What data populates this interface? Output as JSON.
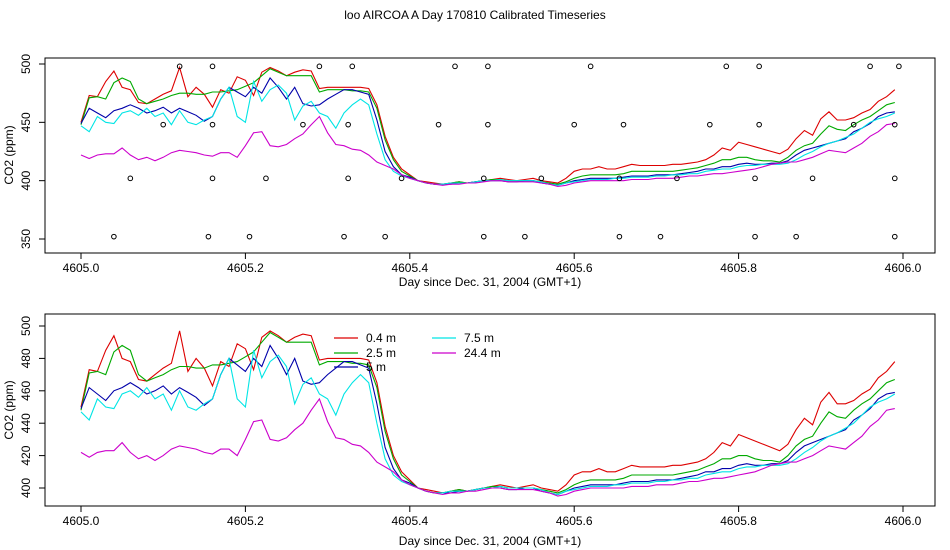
{
  "figure": {
    "title": "loo AIRCOA A  Day 170810  Calibrated Timeseries"
  },
  "colors": {
    "0.4 m": "#dd0000",
    "2.5 m": "#00aa00",
    "5 m": "#0000aa",
    "7.5 m": "#00e5e5",
    "24.4 m": "#cc00cc",
    "points": "#000000"
  },
  "chart_data": [
    {
      "type": "line",
      "xlabel": "Day since Dec. 31, 2004 (GMT+1)",
      "ylabel": "CO2 (ppm)",
      "xlim": [
        4605.0,
        4606.0
      ],
      "ylim": [
        350,
        500
      ],
      "xticks": [
        4605.0,
        4605.2,
        4605.4,
        4605.6,
        4605.8,
        4606.0
      ],
      "xtick_labels": [
        "4605.0",
        "4605.2",
        "4605.4",
        "4605.6",
        "4605.8",
        "4606.0"
      ],
      "yticks": [
        350,
        400,
        450,
        500
      ],
      "ytick_labels": [
        "350",
        "400",
        "450",
        "500"
      ],
      "x": [
        4605.0,
        4605.01,
        4605.02,
        4605.03,
        4605.04,
        4605.05,
        4605.06,
        4605.07,
        4605.08,
        4605.09,
        4605.1,
        4605.11,
        4605.12,
        4605.13,
        4605.14,
        4605.15,
        4605.16,
        4605.17,
        4605.18,
        4605.19,
        4605.2,
        4605.21,
        4605.22,
        4605.23,
        4605.24,
        4605.25,
        4605.26,
        4605.27,
        4605.28,
        4605.29,
        4605.3,
        4605.31,
        4605.32,
        4605.33,
        4605.34,
        4605.35,
        4605.36,
        4605.37,
        4605.38,
        4605.39,
        4605.4,
        4605.41,
        4605.42,
        4605.43,
        4605.44,
        4605.45,
        4605.46,
        4605.47,
        4605.48,
        4605.49,
        4605.5,
        4605.51,
        4605.52,
        4605.53,
        4605.54,
        4605.55,
        4605.56,
        4605.57,
        4605.58,
        4605.59,
        4605.6,
        4605.61,
        4605.62,
        4605.63,
        4605.64,
        4605.65,
        4605.66,
        4605.67,
        4605.68,
        4605.69,
        4605.7,
        4605.71,
        4605.72,
        4605.73,
        4605.74,
        4605.75,
        4605.76,
        4605.77,
        4605.78,
        4605.79,
        4605.8,
        4605.81,
        4605.82,
        4605.83,
        4605.84,
        4605.85,
        4605.86,
        4605.87,
        4605.88,
        4605.89,
        4605.9,
        4605.91,
        4605.92,
        4605.93,
        4605.94,
        4605.95,
        4605.96,
        4605.97,
        4605.98,
        4605.99
      ],
      "series": [
        {
          "name": "0.4 m",
          "values": [
            450,
            473,
            472,
            485,
            494,
            480,
            478,
            467,
            466,
            470,
            474,
            477,
            497,
            472,
            480,
            474,
            463,
            478,
            475,
            489,
            486,
            473,
            493,
            497,
            494,
            490,
            493,
            495,
            494,
            479,
            480,
            480,
            480,
            480,
            480,
            479,
            465,
            438,
            420,
            410,
            405,
            400,
            399,
            398,
            397,
            398,
            399,
            398,
            399,
            400,
            401,
            402,
            401,
            400,
            401,
            402,
            400,
            399,
            398,
            402,
            408,
            410,
            410,
            412,
            410,
            410,
            412,
            414,
            413,
            413,
            413,
            413,
            414,
            414,
            415,
            416,
            418,
            422,
            428,
            426,
            433,
            431,
            429,
            427,
            425,
            423,
            427,
            436,
            443,
            439,
            453,
            459,
            452,
            452,
            454,
            458,
            461,
            468,
            472,
            478
          ]
        },
        {
          "name": "2.5 m",
          "values": [
            448,
            471,
            472,
            470,
            484,
            488,
            485,
            470,
            466,
            468,
            470,
            473,
            475,
            475,
            474,
            474,
            476,
            476,
            477,
            478,
            481,
            484,
            490,
            496,
            493,
            490,
            490,
            490,
            490,
            476,
            478,
            478,
            478,
            477,
            477,
            476,
            462,
            435,
            418,
            408,
            404,
            400,
            398,
            397,
            397,
            398,
            399,
            398,
            399,
            400,
            401,
            401,
            400,
            400,
            400,
            400,
            399,
            398,
            397,
            399,
            402,
            404,
            405,
            405,
            405,
            405,
            406,
            408,
            408,
            408,
            408,
            408,
            408,
            409,
            410,
            411,
            413,
            415,
            418,
            418,
            420,
            420,
            418,
            417,
            417,
            416,
            420,
            426,
            430,
            432,
            440,
            447,
            444,
            443,
            448,
            452,
            455,
            460,
            465,
            467
          ]
        },
        {
          "name": "5 m",
          "values": [
            449,
            462,
            458,
            454,
            460,
            462,
            465,
            462,
            458,
            460,
            463,
            458,
            462,
            459,
            456,
            451,
            455,
            470,
            480,
            476,
            472,
            480,
            475,
            488,
            480,
            470,
            480,
            466,
            464,
            465,
            470,
            474,
            478,
            478,
            476,
            474,
            452,
            425,
            412,
            405,
            403,
            400,
            398,
            397,
            397,
            397,
            398,
            398,
            399,
            400,
            400,
            400,
            399,
            399,
            400,
            400,
            398,
            397,
            396,
            398,
            400,
            401,
            402,
            402,
            402,
            402,
            403,
            404,
            404,
            404,
            405,
            405,
            405,
            406,
            407,
            408,
            410,
            410,
            412,
            412,
            414,
            415,
            414,
            414,
            415,
            415,
            417,
            422,
            426,
            428,
            430,
            432,
            434,
            436,
            442,
            445,
            449,
            455,
            458,
            459
          ]
        },
        {
          "name": "7.5 m",
          "values": [
            447,
            442,
            455,
            450,
            449,
            458,
            460,
            456,
            462,
            455,
            458,
            448,
            460,
            450,
            448,
            452,
            455,
            470,
            480,
            455,
            450,
            485,
            468,
            478,
            482,
            475,
            452,
            464,
            468,
            458,
            455,
            445,
            458,
            465,
            470,
            465,
            440,
            418,
            408,
            404,
            402,
            400,
            398,
            397,
            397,
            398,
            398,
            398,
            399,
            400,
            400,
            401,
            400,
            400,
            400,
            400,
            399,
            397,
            396,
            398,
            399,
            400,
            401,
            401,
            401,
            402,
            402,
            403,
            403,
            403,
            404,
            404,
            405,
            405,
            406,
            406,
            408,
            409,
            410,
            410,
            412,
            413,
            413,
            414,
            414,
            414,
            415,
            418,
            422,
            425,
            429,
            432,
            434,
            437,
            440,
            445,
            450,
            453,
            455,
            458
          ]
        },
        {
          "name": "24.4 m",
          "values": [
            422,
            419,
            422,
            423,
            423,
            428,
            422,
            418,
            420,
            417,
            420,
            424,
            426,
            425,
            424,
            422,
            421,
            424,
            424,
            420,
            430,
            441,
            442,
            430,
            429,
            431,
            436,
            440,
            448,
            455,
            441,
            431,
            430,
            427,
            426,
            422,
            416,
            413,
            410,
            405,
            402,
            400,
            398,
            397,
            396,
            397,
            397,
            398,
            398,
            399,
            400,
            400,
            399,
            399,
            399,
            399,
            398,
            397,
            395,
            396,
            398,
            399,
            400,
            400,
            400,
            400,
            400,
            401,
            401,
            401,
            402,
            402,
            402,
            403,
            404,
            404,
            405,
            406,
            406,
            407,
            408,
            409,
            410,
            412,
            414,
            415,
            416,
            416,
            418,
            420,
            423,
            426,
            425,
            424,
            428,
            432,
            438,
            442,
            448,
            449
          ]
        }
      ],
      "scatter": {
        "x": [
          4605.04,
          4605.06,
          4605.1,
          4605.12,
          4605.155,
          4605.16,
          4605.16,
          4605.16,
          4605.205,
          4605.225,
          4605.27,
          4605.29,
          4605.32,
          4605.325,
          4605.325,
          4605.33,
          4605.37,
          4605.39,
          4605.435,
          4605.455,
          4605.49,
          4605.49,
          4605.495,
          4605.495,
          4605.54,
          4605.56,
          4605.6,
          4605.62,
          4605.655,
          4605.655,
          4605.66,
          4605.705,
          4605.725,
          4605.765,
          4605.785,
          4605.82,
          4605.82,
          4605.825,
          4605.825,
          4605.87,
          4605.89,
          4605.94,
          4605.96,
          4605.99,
          4605.99,
          4605.99,
          4605.995
        ],
        "y": [
          352,
          402,
          448,
          498,
          352,
          402,
          448,
          498,
          352,
          402,
          448,
          498,
          352,
          402,
          448,
          498,
          352,
          402,
          448,
          498,
          352,
          402,
          448,
          498,
          352,
          402,
          448,
          498,
          352,
          402,
          448,
          352,
          402,
          448,
          498,
          352,
          402,
          448,
          498,
          352,
          402,
          448,
          498,
          352,
          402,
          448,
          498
        ]
      }
    },
    {
      "type": "line",
      "xlabel": "Day since Dec. 31, 2004 (GMT+1)",
      "ylabel": "CO2 (ppm)",
      "xlim": [
        4605.0,
        4606.0
      ],
      "ylim": [
        390,
        500
      ],
      "xticks": [
        4605.0,
        4605.2,
        4605.4,
        4605.6,
        4605.8,
        4606.0
      ],
      "xtick_labels": [
        "4605.0",
        "4605.2",
        "4605.4",
        "4605.6",
        "4605.8",
        "4606.0"
      ],
      "yticks": [
        400,
        420,
        440,
        460,
        480,
        500
      ],
      "ytick_labels": [
        "400",
        "420",
        "440",
        "460",
        "480",
        "500"
      ],
      "legend": {
        "placement": "top-center",
        "entries": [
          "0.4 m",
          "2.5 m",
          "5 m",
          "7.5 m",
          "24.4 m"
        ]
      },
      "x": "same as upper panel",
      "series": "same as upper panel"
    }
  ]
}
